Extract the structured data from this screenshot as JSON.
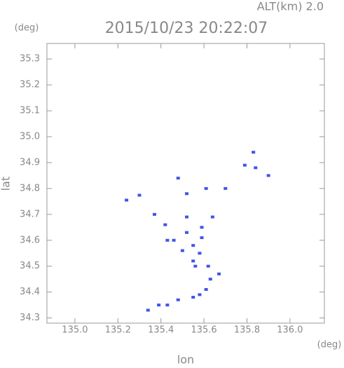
{
  "chart_data": {
    "type": "scatter",
    "title": "2015/10/23 20:22:07",
    "altitude_label": "ALT(km) 2.0",
    "y_unit": "(deg)",
    "x_unit": "(deg)",
    "x_label": "lon",
    "y_label": "lat",
    "xlim": [
      134.87,
      136.16
    ],
    "ylim": [
      34.28,
      35.36
    ],
    "xticks": [
      {
        "value": 135,
        "label": "135.0"
      },
      135.2,
      135.4,
      135.6,
      135.8,
      {
        "value": 136,
        "label": "136.0"
      }
    ],
    "yticks": [
      34.3,
      34.4,
      34.5,
      34.6,
      34.7,
      34.8,
      34.9,
      {
        "value": 35,
        "label": "35.0"
      },
      35.1,
      35.2,
      35.3
    ],
    "color": "#3f55e6",
    "x": [
      135.24,
      135.3,
      135.37,
      135.83,
      135.79,
      135.84,
      135.9,
      135.61,
      135.52,
      135.7,
      135.48,
      135.52,
      135.42,
      135.64,
      135.52,
      135.55,
      135.55,
      135.56,
      135.62,
      135.67,
      135.63,
      135.61,
      135.58,
      135.55,
      135.48,
      135.43,
      135.39,
      135.34,
      135.46,
      135.43,
      135.59,
      135.5,
      135.58,
      135.59
    ],
    "y": [
      34.755,
      34.774,
      34.7,
      34.94,
      34.89,
      34.88,
      34.85,
      34.8,
      34.78,
      34.8,
      34.84,
      34.69,
      34.66,
      34.69,
      34.63,
      34.58,
      34.52,
      34.5,
      34.5,
      34.47,
      34.45,
      34.41,
      34.39,
      34.38,
      34.37,
      34.35,
      34.35,
      34.33,
      34.6,
      34.6,
      34.65,
      34.56,
      34.55,
      34.61
    ]
  }
}
